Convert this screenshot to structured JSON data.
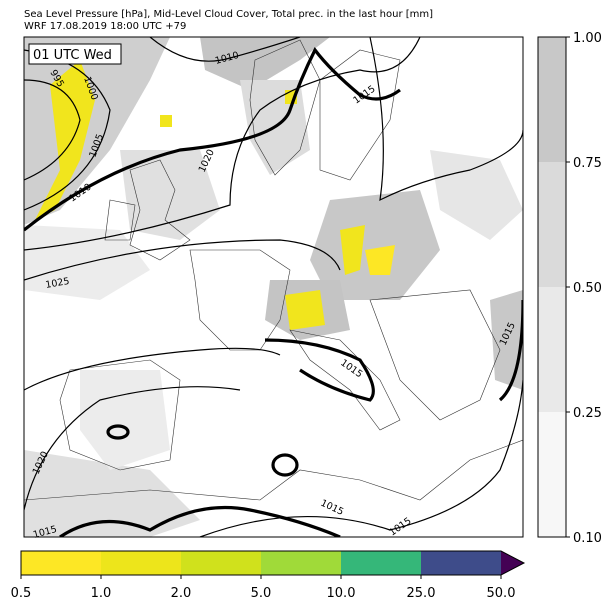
{
  "header": {
    "title": [
      "Sea Level Pressure [hPa], Mid-Level Cloud Cover, Total prec. in the last hour [mm]",
      "WRF 17.08.2019 18:00 UTC +79"
    ]
  },
  "map": {
    "time_label": "01 UTC Wed",
    "isobar_labels": [
      "1010",
      "995",
      "1000",
      "1005",
      "1010",
      "1020",
      "1015",
      "1025",
      "1015",
      "1015",
      "1020",
      "1015",
      "1015",
      "1015"
    ]
  },
  "cloud_colorbar": {
    "labels": [
      "0.10",
      "0.25",
      "0.50",
      "0.75",
      "1.00"
    ]
  },
  "precip_colorbar": {
    "labels": [
      "0.5",
      "1.0",
      "2.0",
      "5.0",
      "10.0",
      "25.0",
      "50.0"
    ]
  }
}
